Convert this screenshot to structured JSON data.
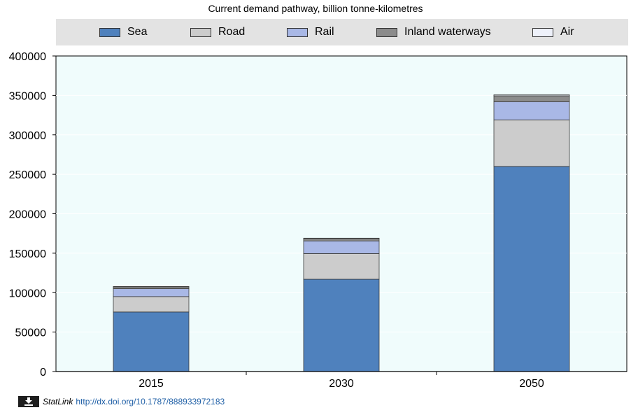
{
  "chart_data": {
    "type": "bar",
    "stacked": true,
    "title": "Current demand pathway, billion tonne-kilometres",
    "categories": [
      "2015",
      "2030",
      "2050"
    ],
    "series": [
      {
        "name": "Sea",
        "color": "#4f81bd",
        "values": [
          75500,
          117000,
          260000
        ]
      },
      {
        "name": "Road",
        "color": "#cccccc",
        "values": [
          19500,
          32500,
          59000
        ]
      },
      {
        "name": "Rail",
        "color": "#a9b8e6",
        "values": [
          10000,
          16000,
          23000
        ]
      },
      {
        "name": "Inland waterways",
        "color": "#8c8c8c",
        "values": [
          2500,
          3000,
          7500
        ]
      },
      {
        "name": "Air",
        "color": "#eef1fa",
        "values": [
          300,
          600,
          1300
        ]
      }
    ],
    "ylim": [
      0,
      400000
    ],
    "yticks": [
      0,
      50000,
      100000,
      150000,
      200000,
      250000,
      300000,
      350000,
      400000
    ],
    "grid": true,
    "legend_position": "top",
    "plot_background": "#f0fcfc"
  },
  "statlink": {
    "label": "StatLink",
    "url": "http://dx.doi.org/10.1787/888933972183",
    "icon": "download-icon"
  }
}
